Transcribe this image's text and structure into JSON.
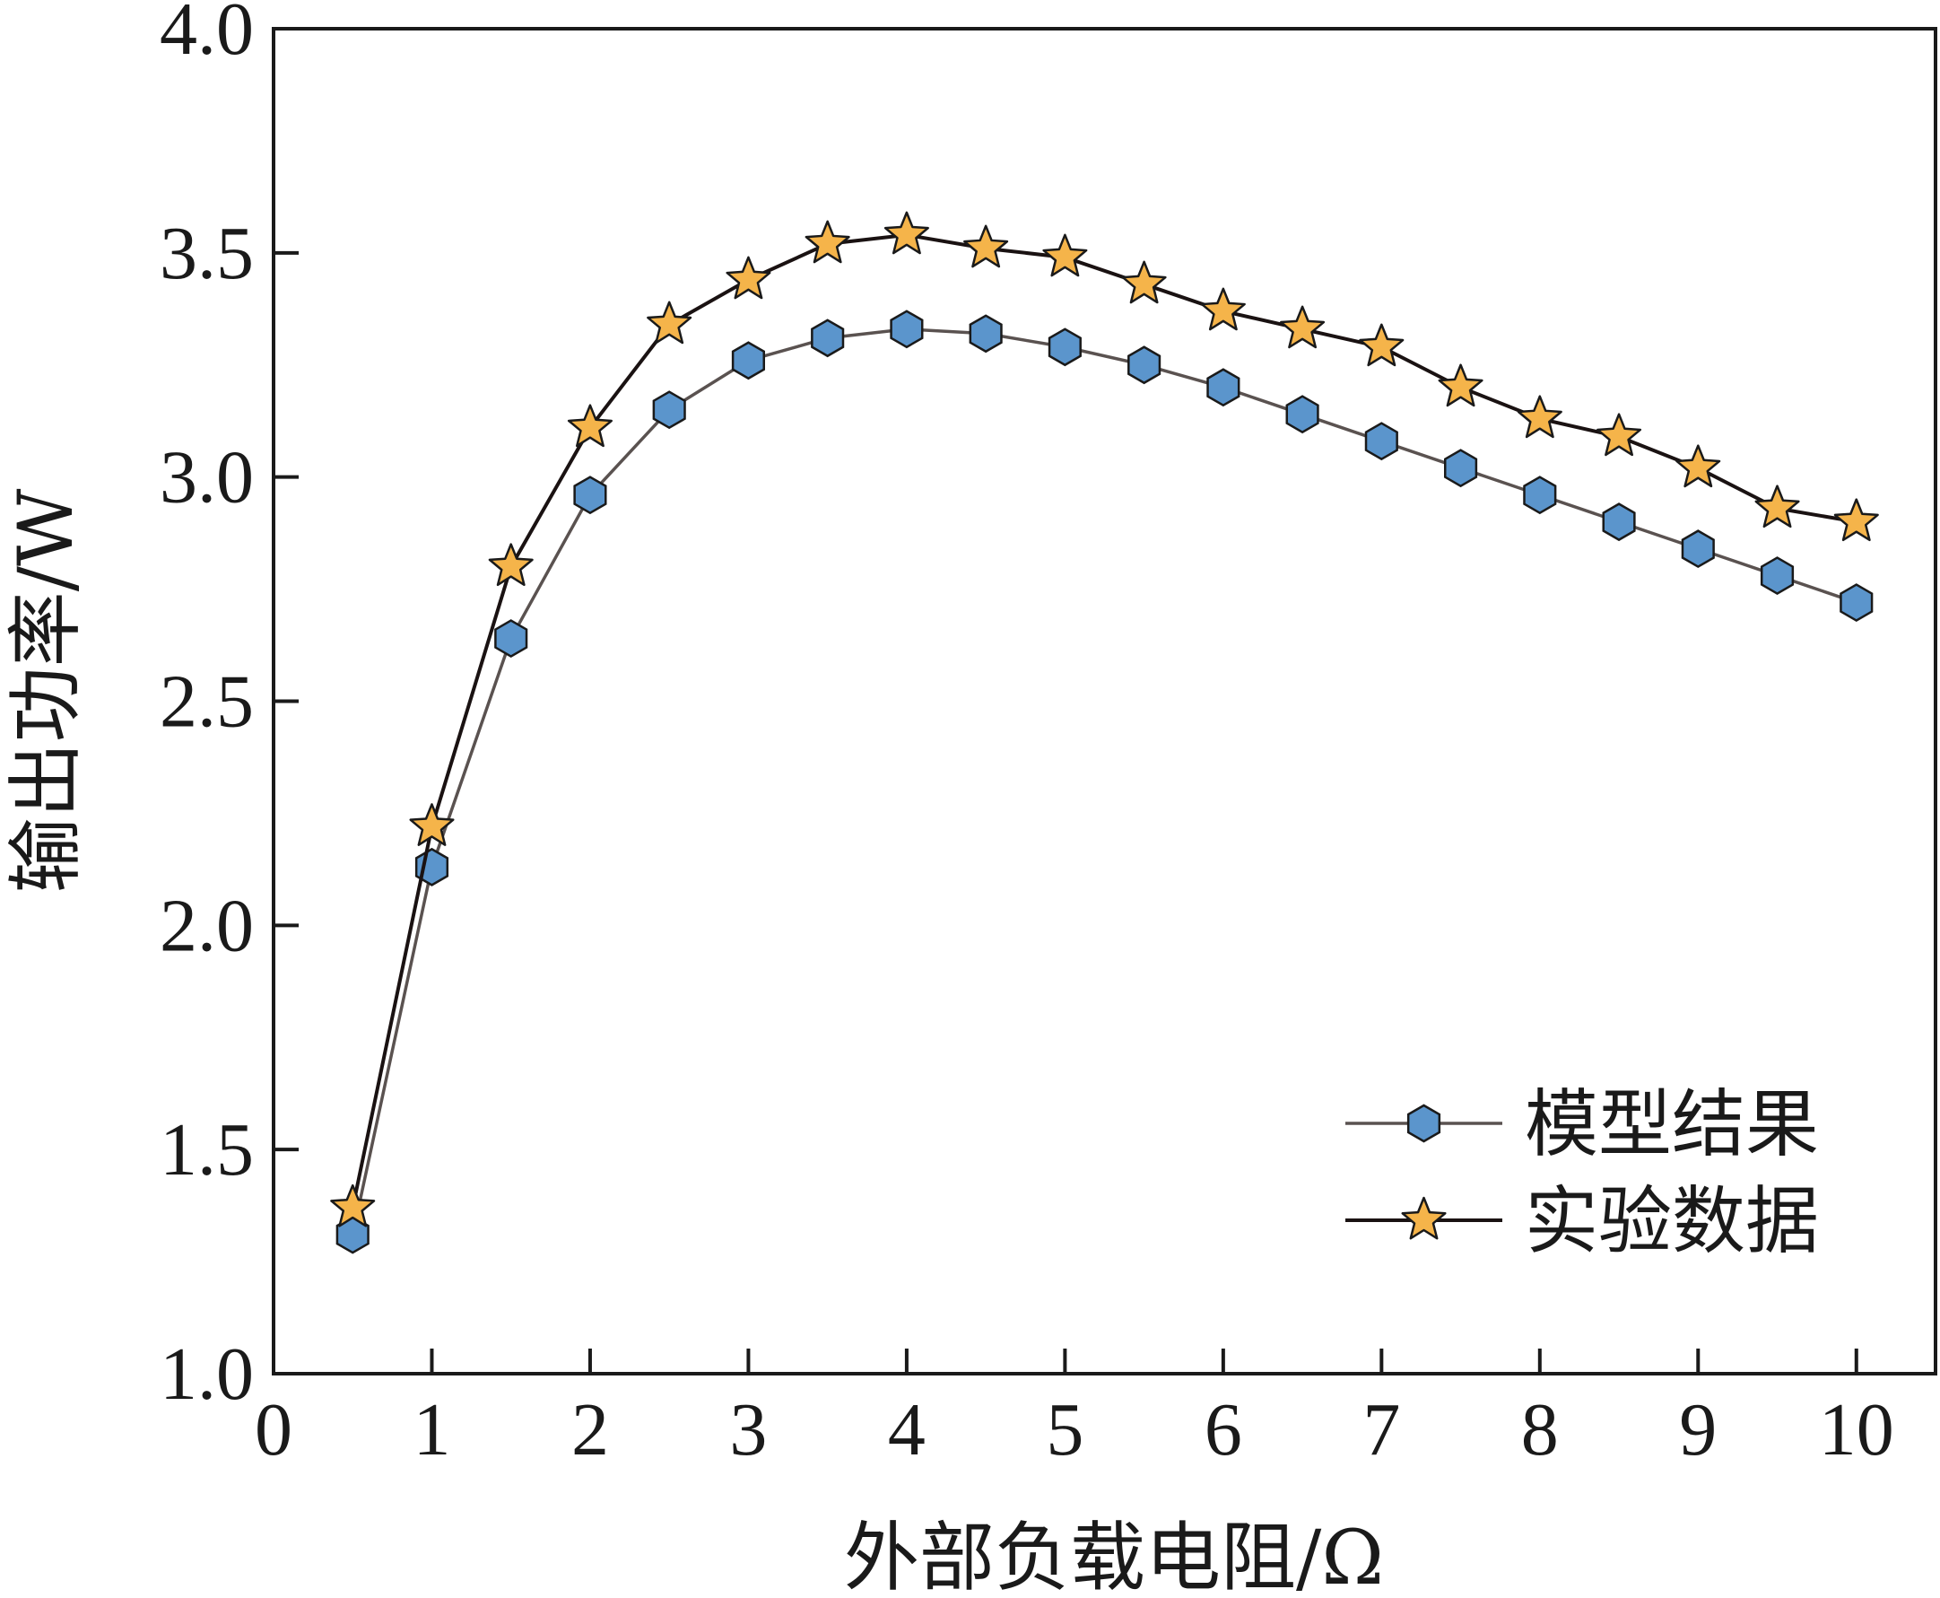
{
  "chart_data": {
    "type": "line",
    "title": "",
    "xlabel": "外部负载电阻/Ω",
    "ylabel": "输出功率/W",
    "xlim": [
      0,
      10.5
    ],
    "ylim": [
      1.0,
      4.0
    ],
    "x_ticks": [
      0,
      1,
      2,
      3,
      4,
      5,
      6,
      7,
      8,
      9,
      10
    ],
    "x_tick_labels": [
      "0",
      "1",
      "2",
      "3",
      "4",
      "5",
      "6",
      "7",
      "8",
      "9",
      "10"
    ],
    "y_ticks": [
      1.0,
      1.5,
      2.0,
      2.5,
      3.0,
      3.5,
      4.0
    ],
    "y_tick_labels": [
      "1.0",
      "1.5",
      "2.0",
      "2.5",
      "3.0",
      "3.5",
      "4.0"
    ],
    "grid": false,
    "legend_position": "bottom-right",
    "x": [
      0.5,
      1.0,
      1.5,
      2.0,
      2.5,
      3.0,
      3.5,
      4.0,
      4.5,
      5.0,
      5.5,
      6.0,
      6.5,
      7.0,
      7.5,
      8.0,
      8.5,
      9.0,
      9.5,
      10.0
    ],
    "series": [
      {
        "name": "模型结果",
        "marker": "hexagon",
        "marker_color": "#5b95cc",
        "line_color": "#5a5250",
        "values": [
          1.31,
          2.13,
          2.64,
          2.96,
          3.15,
          3.26,
          3.31,
          3.33,
          3.32,
          3.29,
          3.25,
          3.2,
          3.14,
          3.08,
          3.02,
          2.96,
          2.9,
          2.84,
          2.78,
          2.72
        ]
      },
      {
        "name": "实验数据",
        "marker": "star",
        "marker_color": "#f5b44a",
        "line_color": "#1a1212",
        "values": [
          1.37,
          2.22,
          2.8,
          3.11,
          3.34,
          3.44,
          3.52,
          3.54,
          3.51,
          3.49,
          3.43,
          3.37,
          3.33,
          3.29,
          3.2,
          3.13,
          3.09,
          3.02,
          2.93,
          2.9
        ]
      }
    ]
  }
}
